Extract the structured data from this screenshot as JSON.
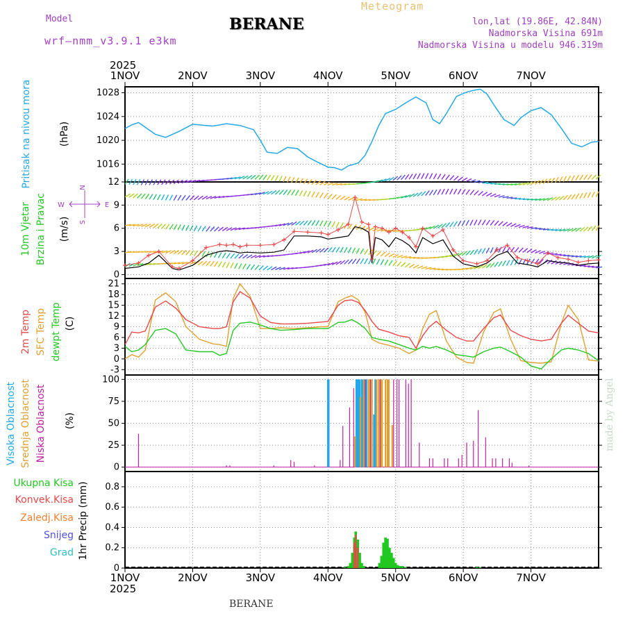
{
  "header": {
    "model_label": "Model",
    "model_name": "wrf—nmm_v3.9.1  e3km",
    "station": "BERANE",
    "meteogram": "Meteogram",
    "coords": "lon,lat (19.86E, 42.84N)",
    "elevation": "Nadmorska Visina 691m",
    "elevation_model": "Nadmorska Visina u modelu 946.319m",
    "year": "2025",
    "footer_station": "BERANE",
    "credit": "made by Angel"
  },
  "colors": {
    "pressure": "#22a8e8",
    "wind_label": "#22c822",
    "temp2m": "#e84848",
    "sfc": "#e0a030",
    "dewpt": "#22c822",
    "high_cloud": "#22a8e8",
    "mid_cloud": "#e0a030",
    "low_cloud": "#c020a0",
    "precip_total": "#22c822",
    "precip_conv": "#e84848",
    "compass": "#a040c0"
  },
  "compass": {
    "n": "N",
    "s": "S",
    "w": "W",
    "e": "E"
  },
  "chart_data": [
    {
      "type": "line",
      "panel": "pressure",
      "ylabel": [
        "Pritisak na nivou mora",
        "(hPa)"
      ],
      "x_categories": [
        "1NOV",
        "2NOV",
        "3NOV",
        "4NOV",
        "5NOV",
        "6NOV",
        "7NOV"
      ],
      "ylim": [
        1013,
        1029
      ],
      "yticks": [
        1016,
        1020,
        1024,
        1028
      ],
      "series": [
        {
          "name": "MSLP",
          "x": [
            0,
            0.1,
            0.2,
            0.3,
            0.45,
            0.6,
            0.8,
            1,
            1.2,
            1.3,
            1.5,
            1.7,
            1.9,
            2,
            2.1,
            2.25,
            2.4,
            2.55,
            2.7,
            2.85,
            3,
            3.1,
            3.2,
            3.3,
            3.45,
            3.55,
            3.65,
            3.75,
            3.85,
            4,
            4.15,
            4.3,
            4.45,
            4.55,
            4.65,
            4.75,
            4.9,
            5.05,
            5.15,
            5.25,
            5.35,
            5.45,
            5.6,
            5.75,
            5.85,
            6,
            6.15,
            6.3,
            6.45,
            6.6,
            6.75,
            6.9,
            7
          ],
          "y": [
            1022.0,
            1022.6,
            1023.0,
            1022.2,
            1021.0,
            1020.5,
            1021.5,
            1022.7,
            1022.5,
            1022.4,
            1022.8,
            1022.5,
            1021.8,
            1020.0,
            1018.0,
            1017.8,
            1018.8,
            1018.6,
            1017.2,
            1016.3,
            1015.5,
            1015.4,
            1015.0,
            1015.7,
            1016.2,
            1017.5,
            1019.8,
            1022.5,
            1024.5,
            1025.2,
            1026.3,
            1027.3,
            1026.3,
            1023.5,
            1022.8,
            1024.5,
            1027.4,
            1028.1,
            1028.4,
            1028.6,
            1027.8,
            1026.0,
            1023.5,
            1022.5,
            1023.8,
            1025.0,
            1025.5,
            1024.3,
            1022.0,
            1019.5,
            1018.9,
            1019.7,
            1019.8
          ]
        }
      ]
    },
    {
      "type": "line",
      "panel": "wind",
      "ylabel": [
        "10m Vjetar",
        "Brzina i Pravac",
        "(m/s)"
      ],
      "ylim": [
        -0.5,
        12
      ],
      "yticks": [
        0,
        3,
        6,
        9,
        12
      ],
      "series": [
        {
          "name": "wind_speed_black",
          "x": [
            0,
            0.2,
            0.35,
            0.5,
            0.7,
            0.8,
            1,
            1.2,
            1.4,
            1.5,
            1.6,
            1.7,
            1.8,
            2,
            2.2,
            2.35,
            2.5,
            2.7,
            2.9,
            3,
            3.15,
            3.3,
            3.4,
            3.5,
            3.6,
            3.65,
            3.7,
            3.8,
            3.9,
            4,
            4.1,
            4.2,
            4.3,
            4.4,
            4.55,
            4.7,
            4.85,
            5,
            5.2,
            5.35,
            5.5,
            5.65,
            5.8,
            5.95,
            6.1,
            6.25,
            6.4,
            6.55,
            6.7,
            6.85,
            7
          ],
          "y": [
            0.8,
            1.0,
            1.5,
            2.5,
            0.8,
            0.6,
            1.2,
            2.5,
            3.0,
            3.1,
            3.0,
            2.8,
            2.9,
            2.8,
            2.9,
            3.2,
            5.0,
            5.0,
            4.9,
            4.6,
            4.8,
            5.0,
            6.2,
            6.0,
            5.5,
            1.5,
            4.8,
            4.5,
            3.6,
            4.8,
            4.4,
            3.8,
            2.8,
            4.8,
            4.0,
            4.5,
            2.4,
            1.4,
            1.0,
            1.5,
            2.5,
            3.0,
            1.5,
            1.3,
            1.0,
            1.8,
            1.6,
            1.5,
            1.2,
            1.4,
            1.5
          ]
        },
        {
          "name": "wind_gust_red_crosses",
          "x": [
            0,
            0.2,
            0.35,
            0.5,
            0.7,
            0.8,
            1,
            1.2,
            1.4,
            1.5,
            1.6,
            1.7,
            1.8,
            2,
            2.2,
            2.35,
            2.5,
            2.7,
            2.9,
            3,
            3.15,
            3.3,
            3.4,
            3.5,
            3.6,
            3.65,
            3.7,
            3.8,
            3.9,
            4,
            4.1,
            4.2,
            4.3,
            4.4,
            4.55,
            4.7,
            4.85,
            5,
            5.2,
            5.35,
            5.5,
            5.65,
            5.8,
            5.95,
            6.1,
            6.25,
            6.4,
            6.55,
            6.7,
            6.85,
            7
          ],
          "y": [
            1.2,
            1.5,
            2.5,
            3.0,
            1.0,
            0.8,
            1.8,
            3.5,
            3.9,
            3.8,
            3.9,
            3.6,
            3.8,
            3.8,
            3.9,
            4.5,
            5.6,
            5.5,
            5.4,
            5.2,
            5.8,
            6.5,
            10.0,
            6.8,
            6.5,
            2.0,
            6.2,
            6.0,
            5.5,
            6.0,
            5.5,
            4.8,
            3.6,
            6.0,
            5.0,
            5.8,
            3.2,
            1.8,
            1.4,
            1.8,
            3.2,
            3.8,
            2.2,
            1.8,
            1.4,
            2.8,
            2.2,
            2.0,
            1.6,
            1.8,
            1.9
          ]
        }
      ],
      "barb_rows": [
        1.0,
        2.5,
        6.0,
        10.0,
        12.0
      ],
      "note": "wind barb arrows drawn as colored ticks along rows"
    },
    {
      "type": "line",
      "panel": "temperature",
      "ylabel": [
        "2m Temp",
        "SFC Temp",
        "dewpt Temp",
        "(C)"
      ],
      "ylim": [
        -4.5,
        22.5
      ],
      "yticks": [
        -3,
        0,
        3,
        6,
        9,
        12,
        15,
        18,
        21
      ],
      "series": [
        {
          "name": "2m Temp",
          "x": [
            0,
            0.1,
            0.2,
            0.3,
            0.45,
            0.6,
            0.75,
            0.9,
            1.1,
            1.3,
            1.4,
            1.5,
            1.6,
            1.7,
            1.85,
            2,
            2.15,
            2.3,
            2.5,
            2.7,
            2.9,
            3,
            3.15,
            3.25,
            3.35,
            3.45,
            3.55,
            3.65,
            3.75,
            3.9,
            4.05,
            4.2,
            4.3,
            4.4,
            4.5,
            4.6,
            4.75,
            4.9,
            5.05,
            5.15,
            5.3,
            5.45,
            5.55,
            5.7,
            5.85,
            6,
            6.15,
            6.3,
            6.45,
            6.55,
            6.7,
            6.85,
            7
          ],
          "y": [
            4.0,
            7.5,
            7.3,
            7.8,
            14.5,
            16.2,
            14.2,
            11.0,
            9.0,
            8.5,
            8.5,
            9.0,
            16.0,
            18.8,
            17.0,
            12.0,
            10.2,
            9.8,
            9.8,
            10.0,
            10.3,
            10.5,
            15.0,
            16.3,
            16.5,
            15.8,
            13.5,
            10.5,
            8.3,
            7.5,
            6.5,
            6.0,
            3.0,
            6.5,
            9.0,
            10.5,
            8.0,
            6.0,
            5.0,
            5.0,
            8.5,
            11.5,
            12.3,
            8.0,
            6.5,
            5.5,
            5.0,
            5.5,
            10.0,
            12.2,
            10.0,
            7.8,
            7.3
          ]
        },
        {
          "name": "SFC Temp",
          "x": [
            0,
            0.1,
            0.2,
            0.3,
            0.45,
            0.6,
            0.75,
            0.9,
            1.1,
            1.3,
            1.4,
            1.5,
            1.6,
            1.7,
            1.85,
            2,
            2.15,
            2.3,
            2.5,
            2.7,
            2.9,
            3,
            3.15,
            3.25,
            3.35,
            3.45,
            3.55,
            3.65,
            3.75,
            3.9,
            4.05,
            4.2,
            4.3,
            4.4,
            4.5,
            4.6,
            4.75,
            4.9,
            5.05,
            5.15,
            5.3,
            5.45,
            5.55,
            5.7,
            5.85,
            6,
            6.15,
            6.3,
            6.45,
            6.55,
            6.7,
            6.85,
            7
          ],
          "y": [
            0.0,
            1.2,
            0.5,
            2.5,
            16.5,
            18.5,
            16.0,
            9.0,
            5.5,
            4.2,
            4.0,
            3.5,
            17.0,
            21.0,
            17.5,
            8.5,
            8.5,
            8.7,
            8.5,
            8.7,
            9.0,
            9.0,
            16.0,
            17.0,
            17.7,
            16.5,
            13.0,
            5.5,
            4.5,
            3.8,
            3.0,
            1.5,
            2.5,
            8.5,
            12.5,
            13.5,
            5.0,
            0.5,
            -1.0,
            -1.2,
            7.5,
            13.0,
            14.0,
            5.5,
            -0.5,
            -1.0,
            -1.2,
            -0.8,
            10.0,
            15.0,
            11.0,
            -0.3,
            -0.6
          ]
        },
        {
          "name": "dewpt Temp",
          "x": [
            0,
            0.1,
            0.2,
            0.3,
            0.45,
            0.6,
            0.75,
            0.9,
            1.1,
            1.3,
            1.4,
            1.5,
            1.6,
            1.7,
            1.85,
            2,
            2.15,
            2.3,
            2.5,
            2.7,
            2.9,
            3,
            3.15,
            3.25,
            3.35,
            3.45,
            3.55,
            3.65,
            3.75,
            3.9,
            4.05,
            4.2,
            4.3,
            4.4,
            4.5,
            4.6,
            4.75,
            4.9,
            5.05,
            5.15,
            5.3,
            5.45,
            5.55,
            5.7,
            5.85,
            6,
            6.15,
            6.3,
            6.45,
            6.55,
            6.7,
            6.85,
            7
          ],
          "y": [
            3.5,
            2.0,
            2.5,
            4.0,
            8.0,
            8.5,
            7.0,
            2.5,
            2.0,
            2.0,
            1.0,
            1.5,
            8.0,
            10.0,
            10.3,
            9.5,
            8.5,
            8.0,
            8.2,
            8.5,
            8.5,
            8.5,
            10.2,
            10.3,
            11.0,
            10.0,
            8.5,
            6.0,
            5.5,
            5.0,
            4.0,
            3.0,
            2.5,
            3.5,
            3.0,
            3.5,
            2.5,
            1.2,
            0.8,
            0.5,
            2.0,
            3.0,
            3.3,
            2.0,
            0.5,
            -2.0,
            -2.8,
            0.0,
            2.5,
            3.0,
            2.5,
            1.5,
            -0.5
          ]
        }
      ]
    },
    {
      "type": "bar",
      "panel": "cloud",
      "ylabel": [
        "Visoka Oblacnost",
        "Srednja Oblacnost",
        "Niska Oblacnost",
        "(%)"
      ],
      "ylim": [
        -5,
        105
      ],
      "yticks": [
        0,
        25,
        50,
        75,
        100
      ],
      "series": [
        {
          "name": "Visoka Oblacnost",
          "x": [
            3.0,
            3.01,
            3.42,
            3.43,
            3.45,
            3.47,
            3.5,
            3.52,
            3.55,
            3.57,
            3.68,
            3.7
          ],
          "values": [
            100,
            100,
            100,
            100,
            100,
            100,
            100,
            100,
            100,
            100,
            60,
            100
          ]
        },
        {
          "name": "Srednja Oblacnost",
          "x": [
            3.4,
            3.48,
            3.53,
            3.6,
            3.62,
            3.65,
            3.72,
            3.75,
            3.78,
            3.8,
            3.85,
            3.88,
            3.9,
            3.95
          ],
          "values": [
            35,
            80,
            100,
            100,
            100,
            100,
            100,
            100,
            100,
            100,
            100,
            100,
            100,
            48
          ]
        },
        {
          "name": "Niska Oblacnost",
          "x": [
            0.2,
            1.5,
            1.55,
            2.2,
            2.45,
            2.5,
            2.8,
            3.18,
            3.22,
            3.32,
            3.38,
            3.55,
            3.63,
            3.77,
            3.97,
            4.02,
            4.05,
            4.15,
            4.19,
            4.23,
            4.35,
            4.5,
            4.55,
            4.72,
            4.77,
            4.93,
            4.98,
            5.05,
            5.15,
            5.22,
            5.33,
            5.43,
            5.48,
            5.58,
            5.68,
            5.72,
            5.97
          ],
          "values": [
            38,
            2,
            2,
            2,
            8,
            6,
            2,
            8,
            47,
            68,
            90,
            100,
            100,
            100,
            100,
            100,
            100,
            100,
            95,
            100,
            28,
            10,
            10,
            10,
            10,
            10,
            14,
            28,
            30,
            65,
            34,
            10,
            10,
            10,
            10,
            5,
            2
          ]
        }
      ]
    },
    {
      "type": "bar",
      "panel": "precip",
      "ylabel": [
        "Ukupna Kisa",
        "Konvek.Kisa",
        "Zaledj.Kisa",
        "Snijeg",
        "Grad",
        "1hr Precip (mm)"
      ],
      "ylim": [
        0,
        0.95
      ],
      "yticks": [
        0,
        0.2,
        0.4,
        0.6,
        0.8
      ],
      "series": [
        {
          "name": "Ukupna Kisa",
          "x": [
            3.25,
            3.3,
            3.33,
            3.36,
            3.39,
            3.41,
            3.44,
            3.47,
            3.5,
            3.53,
            3.76,
            3.79,
            3.82,
            3.85,
            3.88,
            3.91,
            3.94,
            3.97,
            4.0,
            4.03,
            4.06,
            4.1,
            4.15,
            5.2,
            5.25
          ],
          "values": [
            0.01,
            0.02,
            0.05,
            0.15,
            0.3,
            0.36,
            0.28,
            0.15,
            0.05,
            0.02,
            0.05,
            0.12,
            0.25,
            0.3,
            0.29,
            0.2,
            0.15,
            0.1,
            0.05,
            0.03,
            0.02,
            0.02,
            0.01,
            0.01,
            0.01
          ]
        },
        {
          "name": "Konvek.Kisa",
          "x": [
            3.39,
            3.41,
            3.44
          ],
          "values": [
            0.25,
            0.33,
            0.2
          ]
        }
      ],
      "xlabel_year": "2025"
    }
  ]
}
